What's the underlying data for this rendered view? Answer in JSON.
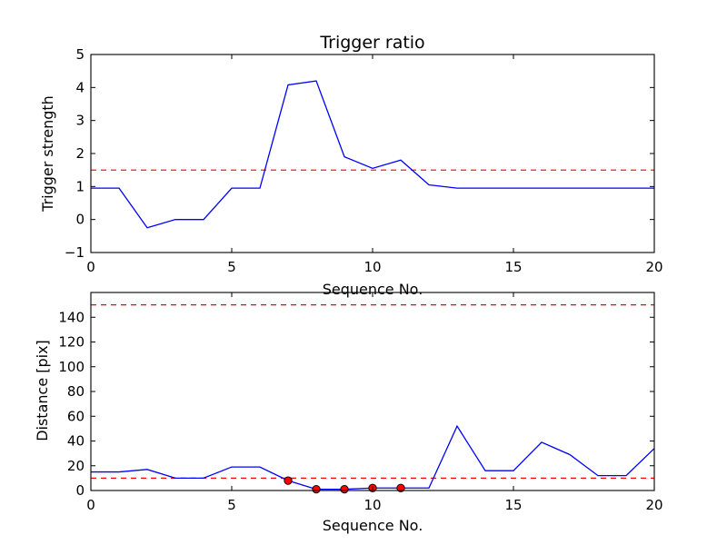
{
  "chart_data": [
    {
      "type": "line",
      "title": "Trigger ratio",
      "xlabel": "Sequence No.",
      "ylabel": "Trigger strength",
      "xlim": [
        0,
        20
      ],
      "ylim": [
        -1,
        5
      ],
      "xticks": [
        0,
        5,
        10,
        15,
        20
      ],
      "yticks": [
        -1,
        0,
        1,
        2,
        3,
        4,
        5
      ],
      "xtick_labels": [
        "0",
        "5",
        "10",
        "15",
        "20"
      ],
      "ytick_labels": [
        "−1",
        "0",
        "1",
        "2",
        "3",
        "4",
        "5"
      ],
      "grid": false,
      "series": [
        {
          "color": "#0000ff",
          "style": "solid",
          "x": [
            0,
            1,
            2,
            3,
            4,
            5,
            6,
            7,
            8,
            9,
            10,
            11,
            12,
            13,
            14,
            15,
            16,
            17,
            18,
            19,
            20
          ],
          "y": [
            0.95,
            0.95,
            -0.25,
            0.0,
            0.0,
            0.95,
            0.95,
            4.08,
            4.2,
            1.9,
            1.55,
            1.8,
            1.05,
            0.95,
            0.95,
            0.95,
            0.95,
            0.95,
            0.95,
            0.95,
            0.95
          ]
        }
      ],
      "hlines": [
        {
          "y": 1.5,
          "color": "#ff0000",
          "style": "dashed"
        }
      ]
    },
    {
      "type": "line",
      "title": "",
      "xlabel": "Sequence No.",
      "ylabel": "Distance [pix]",
      "xlim": [
        0,
        20
      ],
      "ylim": [
        0,
        160
      ],
      "xticks": [
        0,
        5,
        10,
        15,
        20
      ],
      "yticks": [
        0,
        20,
        40,
        60,
        80,
        100,
        120,
        140
      ],
      "xtick_labels": [
        "0",
        "5",
        "10",
        "15",
        "20"
      ],
      "ytick_labels": [
        "0",
        "20",
        "40",
        "60",
        "80",
        "100",
        "120",
        "140"
      ],
      "grid": false,
      "series": [
        {
          "color": "#0000ff",
          "style": "solid",
          "x": [
            0,
            1,
            2,
            3,
            4,
            5,
            6,
            7,
            8,
            9,
            10,
            11,
            12,
            13,
            14,
            15,
            16,
            17,
            18,
            19,
            20
          ],
          "y": [
            15,
            15,
            17,
            10,
            10,
            19,
            19,
            8,
            1,
            1,
            2,
            2,
            2,
            52,
            16,
            16,
            39,
            29,
            12,
            12,
            34
          ]
        }
      ],
      "markers": {
        "color": "#ff0000",
        "x": [
          7,
          8,
          9,
          10,
          11
        ],
        "y": [
          8,
          1,
          1,
          2,
          2
        ]
      },
      "hlines": [
        {
          "y": 150,
          "color": "#ff0000",
          "style": "dashed"
        },
        {
          "y": 10,
          "color": "#ff0000",
          "style": "dashed"
        }
      ]
    }
  ]
}
